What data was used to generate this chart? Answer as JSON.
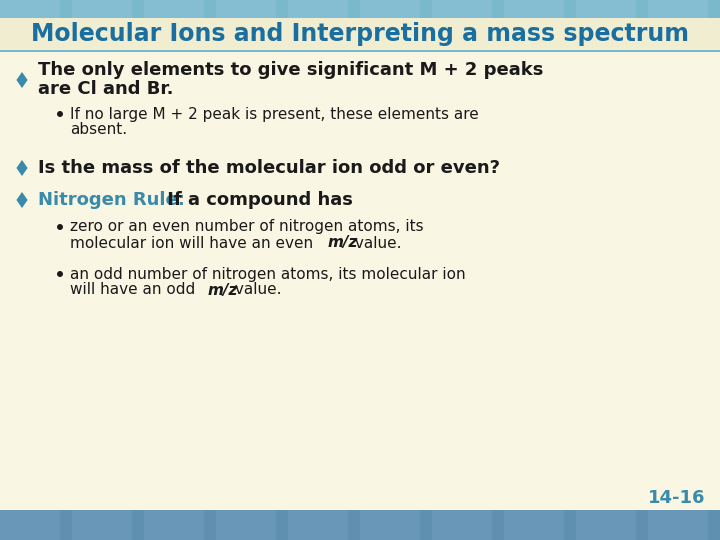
{
  "title": "Molecular Ions and Interpreting a mass spectrum",
  "title_color": "#1a6fa0",
  "title_bg_color": "#f0edd0",
  "title_bar_color": "#7ab8cc",
  "slide_bg_color": "#faf6e4",
  "diamond_color": "#3a8aaa",
  "text_color": "#1a1a1a",
  "page_num_color": "#3a8aaa",
  "footer_color": "#6090b0",
  "bullet1_line1": "The only elements to give significant M + 2 peaks",
  "bullet1_line2": "are Cl and Br.",
  "sub1_line1": "If no large M + 2 peak is present, these elements are",
  "sub1_line2": "absent.",
  "bullet2": "Is the mass of the molecular ion odd or even?",
  "bullet3_colored": "Nitrogen Rule:",
  "bullet3_rest": " If a compound has",
  "sub2_line1": "zero or an even number of nitrogen atoms, its",
  "sub2_line2_pre": "molecular ion will have an even ",
  "sub2_italic": "m/z",
  "sub2_end": " value.",
  "sub3_line1": "an odd number of nitrogen atoms, its molecular ion",
  "sub3_line2_pre": "will have an odd ",
  "sub3_italic": "m/z",
  "sub3_end": " value.",
  "page_num": "14-16"
}
